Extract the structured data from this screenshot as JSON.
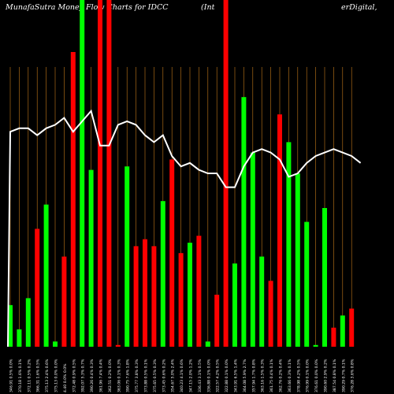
{
  "chart_data": {
    "type": "bar",
    "title": "MunafaSutra  Money Flow  Charts for IDCC",
    "title_company_open": "(Int",
    "title_company_rest": "erDigital,",
    "colors": {
      "background": "#000000",
      "gridline": "#c47a1a",
      "up_bar": "#00ff00",
      "down_bar": "#ff0000",
      "price_line": "#ffffff",
      "label": "#ffffff"
    },
    "grid": true,
    "ylim": [
      0,
      100
    ],
    "bars": [
      {
        "value": 12.0,
        "dir": "up",
        "label": "346.91 0.5% 0.0%"
      },
      {
        "value": 5.0,
        "dir": "up",
        "label": "370.18 1.6% 0.1%"
      },
      {
        "value": 14.0,
        "dir": "up",
        "label": "372.11 0.5% 0.2%"
      },
      {
        "value": 34.0,
        "dir": "down",
        "label": "366.31 1.6% 0.5%"
      },
      {
        "value": 41.0,
        "dir": "up",
        "label": "375.13 2.4% 0.6%"
      },
      {
        "value": 1.5,
        "dir": "up",
        "label": "375.13 0.0% 0.0%"
      },
      {
        "value": 26.0,
        "dir": "down",
        "label": "4.40 0.0% 0.0%"
      },
      {
        "value": 85.0,
        "dir": "down",
        "label": "372.48 0.9% 0.5%"
      },
      {
        "value": 100,
        "dir": "up",
        "label": "392.07 5.3% 0.7%"
      },
      {
        "value": 51.0,
        "dir": "up",
        "label": "390.26 0.4% 0.3%"
      },
      {
        "value": 100,
        "dir": "down",
        "label": "361.96 7.4% 0.4%"
      },
      {
        "value": 100,
        "dir": "down",
        "label": "362.51 0.2% 0.0%"
      },
      {
        "value": 0.5,
        "dir": "down",
        "label": "363.06 0.1% 0.3%"
      },
      {
        "value": 52.0,
        "dir": "up",
        "label": "390.75 7.6% 1.8%"
      },
      {
        "value": 29.0,
        "dir": "down",
        "label": "375.77 3.8% 0.3%"
      },
      {
        "value": 31.0,
        "dir": "down",
        "label": "373.88 0.5% 0.1%"
      },
      {
        "value": 29.0,
        "dir": "down",
        "label": "375.65 0.5% 0.3%"
      },
      {
        "value": 42.0,
        "dir": "up",
        "label": "373.45 0.6% 0.2%"
      },
      {
        "value": 54.0,
        "dir": "down",
        "label": "354.67 5.0% 2.4%"
      },
      {
        "value": 27.0,
        "dir": "down",
        "label": "340.23 4.1% 0.6%"
      },
      {
        "value": 30.0,
        "dir": "up",
        "label": "347.15 2.0% 1.2%"
      },
      {
        "value": 32.0,
        "dir": "down",
        "label": "336.43 3.1% 0.5%"
      },
      {
        "value": 1.5,
        "dir": "up",
        "label": "336.88 0.1% 0.0%"
      },
      {
        "value": 15.0,
        "dir": "down",
        "label": "322.57 4.2% 0.5%"
      },
      {
        "value": 100,
        "dir": "down",
        "label": "322.88 0.1% 0.0%"
      },
      {
        "value": 24.0,
        "dir": "up",
        "label": "343.91 6.5% 1.4%"
      },
      {
        "value": 72.0,
        "dir": "up",
        "label": "364.08 5.9% 2.7%"
      },
      {
        "value": 56.0,
        "dir": "up",
        "label": "357.94 1.7% 0.8%"
      },
      {
        "value": 26.0,
        "dir": "up",
        "label": "363.16 1.5% 0.3%"
      },
      {
        "value": 19.0,
        "dir": "down",
        "label": "361.75 0.4% 0.1%"
      },
      {
        "value": 67.0,
        "dir": "down",
        "label": "362.76 0.2% 0.4%"
      },
      {
        "value": 59.0,
        "dir": "up",
        "label": "363.66 0.3% 0.1%"
      },
      {
        "value": 50.0,
        "dir": "up",
        "label": "378.98 4.2% 0.5%"
      },
      {
        "value": 36.0,
        "dir": "up",
        "label": "376.99 0.1% 0.0%"
      },
      {
        "value": 0.5,
        "dir": "up",
        "label": "376.61 0.0% 0.0%"
      },
      {
        "value": 40.0,
        "dir": "up",
        "label": "390.60 2.9% 0.2%"
      },
      {
        "value": 5.5,
        "dir": "down",
        "label": "387.54 0.8% 0.1%"
      },
      {
        "value": 9.0,
        "dir": "up",
        "label": "390.29 0.7% 0.1%"
      },
      {
        "value": 11.0,
        "dir": "down",
        "label": "376.28 3.6% 0.8%"
      }
    ],
    "price_line": [
      62,
      63,
      63,
      61,
      63,
      64,
      66,
      62,
      65,
      68,
      58,
      58,
      64,
      65,
      64,
      61,
      59,
      61,
      55,
      52,
      53,
      51,
      50,
      50,
      46,
      46,
      52,
      56,
      57,
      56,
      54,
      49,
      50,
      53,
      55,
      56,
      57,
      56,
      55,
      53
    ]
  }
}
